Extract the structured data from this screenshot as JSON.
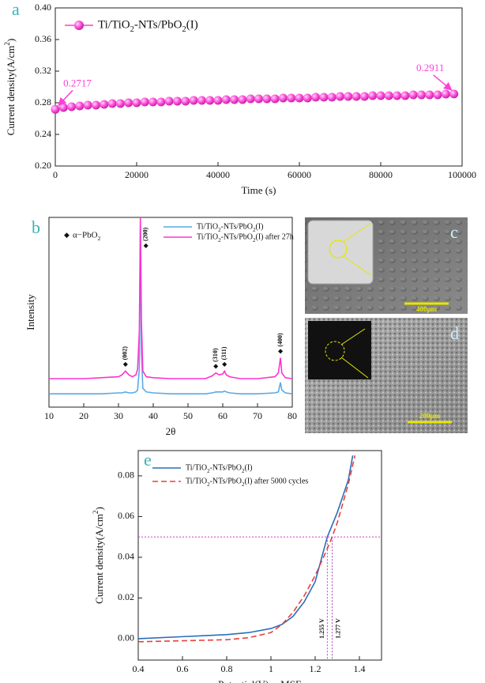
{
  "chart_data": [
    {
      "type": "line",
      "panel": "a",
      "markers": true,
      "legend": "upper left",
      "xlabel": "Time (s)",
      "ylabel": "Current density(A/cm2)",
      "xlim": [
        0,
        100000
      ],
      "xticks": [
        0,
        20000,
        40000,
        60000,
        80000,
        100000
      ],
      "ylim": [
        0.2,
        0.4
      ],
      "yticks": [
        {
          "value": 0.2,
          "label": "0.20"
        },
        0.24,
        0.28,
        0.32,
        0.36,
        {
          "value": 0.4,
          "label": "0.40"
        }
      ],
      "x": [
        0,
        2000,
        4000,
        6000,
        8000,
        10000,
        12000,
        14000,
        16000,
        18000,
        20000,
        22000,
        24000,
        26000,
        28000,
        30000,
        32000,
        34000,
        36000,
        38000,
        40000,
        42000,
        44000,
        46000,
        48000,
        50000,
        52000,
        54000,
        56000,
        58000,
        60000,
        62000,
        64000,
        66000,
        68000,
        70000,
        72000,
        74000,
        76000,
        78000,
        80000,
        82000,
        84000,
        86000,
        88000,
        90000,
        92000,
        94000,
        96000,
        98000
      ],
      "series": [
        {
          "name": "Ti/TiO2-NTs/PbO2(I)",
          "color": "#ff3fd8",
          "values": [
            0.2717,
            0.274,
            0.275,
            0.276,
            0.277,
            0.277,
            0.278,
            0.279,
            0.279,
            0.28,
            0.28,
            0.281,
            0.281,
            0.281,
            0.282,
            0.282,
            0.282,
            0.283,
            0.283,
            0.283,
            0.283,
            0.284,
            0.284,
            0.284,
            0.285,
            0.285,
            0.285,
            0.285,
            0.286,
            0.286,
            0.286,
            0.286,
            0.287,
            0.287,
            0.287,
            0.288,
            0.288,
            0.288,
            0.288,
            0.289,
            0.289,
            0.289,
            0.289,
            0.289,
            0.29,
            0.29,
            0.29,
            0.29,
            0.291,
            0.2911
          ]
        }
      ],
      "annotations": [
        {
          "text": "0.2717",
          "x": 0,
          "y": 0.2717
        },
        {
          "text": "0.2911",
          "x": 98000,
          "y": 0.2911
        }
      ]
    },
    {
      "type": "line",
      "panel": "b",
      "legend": "upper right",
      "xlabel": "2θ",
      "ylabel": "Intensity",
      "marker_legend": "α−PbO2",
      "xlim": [
        10,
        80
      ],
      "xticks": [
        10,
        20,
        30,
        40,
        50,
        60,
        70,
        80
      ],
      "ylim": [
        0,
        100
      ],
      "x": [
        10,
        15,
        20,
        25,
        30,
        31,
        32,
        33,
        34,
        35,
        35.5,
        36,
        36.3,
        36.6,
        37,
        38,
        40,
        45,
        50,
        55,
        57,
        58,
        59,
        60,
        60.5,
        61,
        62,
        65,
        70,
        75,
        76,
        76.6,
        77,
        78,
        80
      ],
      "series": [
        {
          "name": "Ti/TiO2-NTs/PbO2(I)",
          "color": "#5aa9e6",
          "values": [
            7,
            7,
            7,
            7,
            7.5,
            7.5,
            8,
            7.5,
            7.5,
            8,
            9,
            20,
            95,
            30,
            10,
            8,
            7.5,
            7,
            7,
            7,
            7.5,
            8,
            8,
            8,
            8.5,
            8,
            7.5,
            7,
            7,
            7.5,
            8,
            13,
            9,
            7.5,
            7
          ]
        },
        {
          "name": "Ti/TiO2-NTs/PbO2(I) after 27h",
          "color": "#ff33cc",
          "values": [
            15,
            15,
            15,
            15.5,
            16,
            17,
            19,
            17,
            16,
            17,
            20,
            40,
            100,
            45,
            19,
            16,
            15.5,
            15,
            15,
            15,
            16.5,
            18,
            17,
            17.5,
            19,
            17,
            16,
            15,
            15,
            16,
            18,
            26,
            18,
            15.5,
            15
          ]
        }
      ],
      "peaks": [
        {
          "label": "(002)",
          "x": 32
        },
        {
          "label": "(200)",
          "x": 36.3
        },
        {
          "label": "(310)",
          "x": 58
        },
        {
          "label": "(311)",
          "x": 60.5
        },
        {
          "label": "(400)",
          "x": 76.6
        }
      ]
    },
    {
      "type": "line",
      "panel": "e",
      "legend": "upper left",
      "xlabel": "Potential(V)vs MSE",
      "ylabel": "Current density(A/cm2)",
      "xlim": [
        0.4,
        1.5
      ],
      "xticks": [
        0.4,
        0.6,
        0.8,
        1.0,
        1.2,
        1.4
      ],
      "ylim": [
        -0.0105,
        0.0924
      ],
      "yticks": [
        {
          "value": 0,
          "label": "0.00"
        },
        {
          "value": 0.02,
          "label": "0.02"
        },
        {
          "value": 0.04,
          "label": "0.04"
        },
        {
          "value": 0.06,
          "label": "0.06"
        },
        {
          "value": 0.08,
          "label": "0.08"
        }
      ],
      "series": [
        {
          "name": "Ti/TiO2-NTs/PbO2(I)",
          "color": "#2a6ebb",
          "dash": false,
          "x": [
            0.4,
            0.6,
            0.8,
            0.9,
            1.0,
            1.05,
            1.1,
            1.15,
            1.2,
            1.255,
            1.3,
            1.35,
            1.37
          ],
          "values": [
            0,
            0.001,
            0.002,
            0.003,
            0.005,
            0.007,
            0.011,
            0.018,
            0.028,
            0.05,
            0.062,
            0.078,
            0.09
          ]
        },
        {
          "name": "Ti/TiO2-NTs/PbO2(I)  after 5000 cycles",
          "color": "#e8413a",
          "dash": true,
          "x": [
            0.4,
            0.6,
            0.8,
            0.9,
            1.0,
            1.05,
            1.1,
            1.15,
            1.2,
            1.25,
            1.277,
            1.3,
            1.35,
            1.38
          ],
          "values": [
            -0.0015,
            -0.001,
            -0.0005,
            0.0005,
            0.003,
            0.007,
            0.013,
            0.021,
            0.031,
            0.043,
            0.05,
            0.057,
            0.076,
            0.09
          ]
        }
      ],
      "reference": {
        "y": 0.05,
        "lines": [
          {
            "x": 1.255,
            "label": "1.255 V"
          },
          {
            "x": 1.277,
            "label": "1.277 V"
          }
        ]
      }
    }
  ],
  "images": [
    {
      "label": "c",
      "scale": "400μm"
    },
    {
      "label": "d",
      "scale": "200μm"
    }
  ]
}
